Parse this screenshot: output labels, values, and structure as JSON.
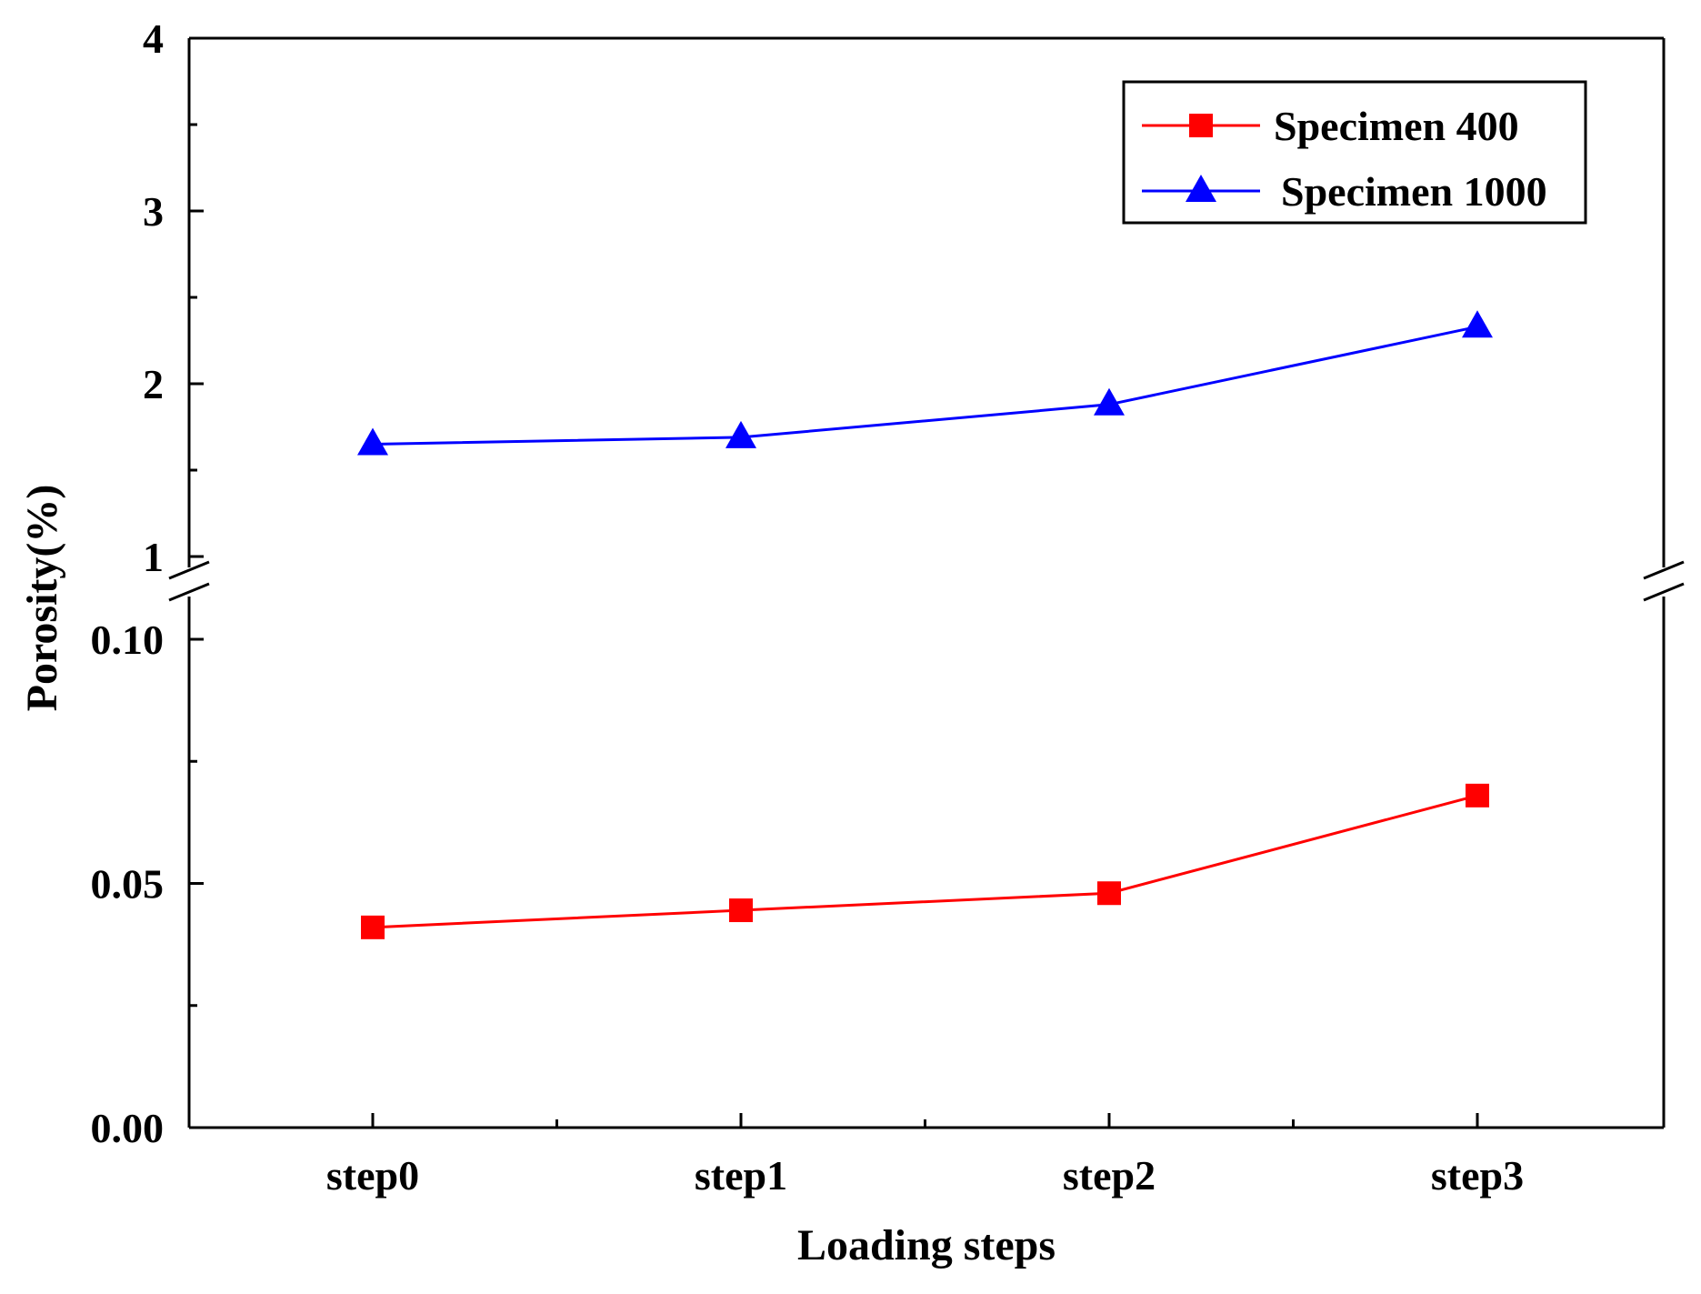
{
  "chart_data": {
    "type": "line",
    "title": "",
    "xlabel": "Loading steps",
    "ylabel": "Porosity(%)",
    "categories": [
      "step0",
      "step1",
      "step2",
      "step3"
    ],
    "y_axis_broken": true,
    "y_lower_range": [
      0.0,
      0.1
    ],
    "y_upper_range": [
      1,
      4
    ],
    "y_lower_ticks": [
      "0.00",
      "0.05",
      "0.10"
    ],
    "y_upper_ticks": [
      "1",
      "2",
      "3",
      "4"
    ],
    "legend_position": "top-right",
    "series": [
      {
        "name": "Specimen 400",
        "color": "#ff0000",
        "marker": "square",
        "segment": "lower",
        "values": [
          0.041,
          0.0445,
          0.048,
          0.068
        ]
      },
      {
        "name": "Specimen 1000",
        "color": "#0000ff",
        "marker": "triangle",
        "segment": "upper",
        "values": [
          1.65,
          1.69,
          1.88,
          2.33
        ]
      }
    ]
  }
}
